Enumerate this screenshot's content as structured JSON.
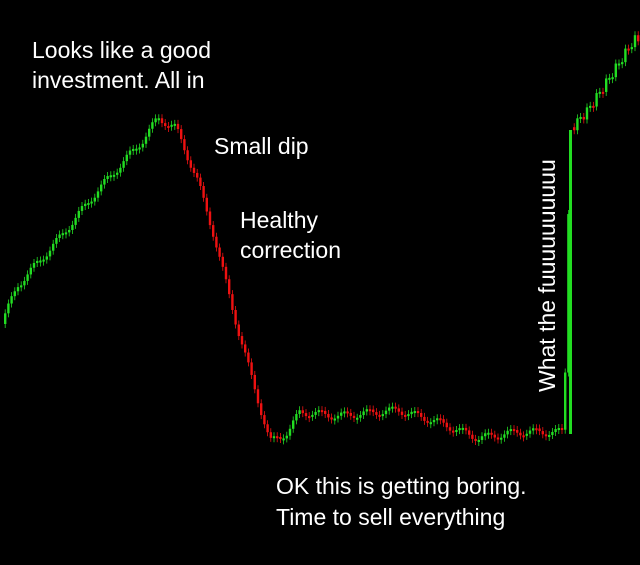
{
  "annotations": [
    {
      "lines": [
        "Looks like a good",
        "investment. All in"
      ]
    },
    {
      "lines": [
        "Small dip"
      ]
    },
    {
      "lines": [
        "Healthy",
        "correction"
      ]
    },
    {
      "lines": [
        "OK this is getting boring.",
        "Time to sell everything"
      ]
    },
    {
      "lines": [
        "What the fuuuuuuuuuu"
      ]
    }
  ]
}
